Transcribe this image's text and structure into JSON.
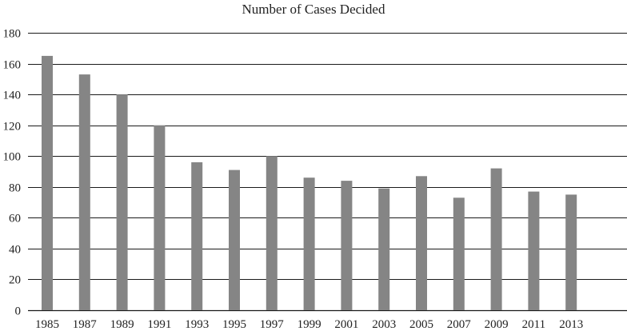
{
  "chart_data": {
    "type": "bar",
    "title": "Number of Cases Decided",
    "xlabel": "",
    "ylabel": "",
    "categories": [
      "1985",
      "1987",
      "1989",
      "1991",
      "1993",
      "1995",
      "1997",
      "1999",
      "2001",
      "2003",
      "2005",
      "2007",
      "2009",
      "2011",
      "2013"
    ],
    "values": [
      165,
      153,
      140,
      120,
      96,
      91,
      100,
      86,
      84,
      79,
      87,
      73,
      92,
      77,
      75
    ],
    "ylim": [
      0,
      180
    ],
    "yticks": [
      "0",
      "20",
      "40",
      "60",
      "80",
      "100",
      "120",
      "140",
      "160",
      "180"
    ],
    "grid": true,
    "legend": "none",
    "colors": {
      "bar": "#858585",
      "grid": "#1a1a1a",
      "text": "#222222"
    }
  }
}
